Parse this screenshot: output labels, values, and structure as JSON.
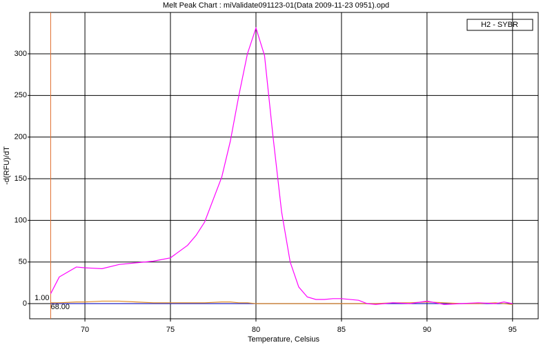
{
  "chart_data": {
    "type": "line",
    "title": "Melt Peak Chart : miValidate091123-01(Data 2009-11-23 0951).opd",
    "xlabel": "Temperature, Celsius",
    "ylabel": "-d(RFU)/dT",
    "legend": "H2 - SYBR",
    "cursor": {
      "x": 68,
      "y_label": "1.00",
      "x_label": "68.00",
      "color": "#e07030"
    },
    "x": [
      68,
      68.5,
      69.5,
      70,
      71,
      72,
      73,
      74,
      75,
      76,
      76.5,
      77,
      78,
      78.5,
      79,
      79.5,
      80,
      80.5,
      81,
      81.5,
      82,
      82.5,
      83,
      83.5,
      84,
      84.5,
      85,
      86,
      86.5,
      87,
      88,
      89,
      90,
      91,
      92,
      93,
      94,
      94.5,
      95
    ],
    "series": [
      {
        "color": "#ff00ff",
        "values": [
          12,
          32,
          44,
          43,
          42,
          47,
          49,
          51,
          55,
          70,
          82,
          98,
          152,
          195,
          250,
          300,
          331,
          298,
          200,
          110,
          50,
          20,
          8,
          5,
          5,
          6,
          6,
          4,
          0,
          -1,
          1,
          0,
          3,
          -1,
          0,
          1,
          0,
          2,
          0
        ]
      },
      {
        "color": "#e08a20",
        "values": [
          1,
          1,
          2,
          2,
          3,
          3,
          2,
          1,
          1,
          1,
          1,
          1,
          2,
          2,
          1,
          1,
          0,
          0,
          0,
          0,
          0,
          0,
          0,
          0,
          0,
          0,
          0,
          0,
          0,
          0,
          1,
          1,
          2,
          1,
          0,
          0,
          1,
          0,
          -1
        ]
      },
      {
        "color": "#2020c0",
        "values": [
          0,
          0,
          0,
          0,
          0,
          0,
          0,
          0,
          0,
          0,
          0,
          0,
          0,
          0,
          0,
          0,
          0,
          0,
          0,
          0,
          0,
          0,
          0,
          0,
          0,
          0,
          0,
          0,
          0,
          0,
          0,
          0,
          0,
          0,
          0,
          0,
          0,
          0,
          0
        ]
      }
    ],
    "xlim": [
      66.77,
      96.5
    ],
    "ylim": [
      -18.2,
      349.7
    ],
    "xticks": [
      70,
      75,
      80,
      85,
      90,
      95
    ],
    "yticks": [
      0,
      50,
      100,
      150,
      200,
      250,
      300
    ],
    "grid": true
  }
}
